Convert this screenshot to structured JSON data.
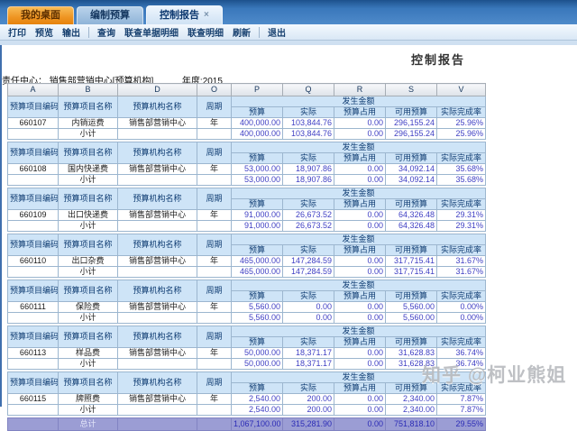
{
  "tabs": [
    {
      "label": "我的桌面"
    },
    {
      "label": "编制预算"
    },
    {
      "label": "控制报告"
    }
  ],
  "icons": {
    "close": "×"
  },
  "toolbar": {
    "groups": [
      [
        "打印",
        "预览",
        "输出"
      ],
      [
        "查询",
        "联查单据明细",
        "联查明细",
        "刷新"
      ],
      [
        "退出"
      ]
    ]
  },
  "report": {
    "title": "控制报告",
    "rc_label": "责任中心：",
    "rc_value": "销售部营销中心[预算机构]",
    "year_label": "年度:",
    "year": "2015"
  },
  "table": {
    "column_letters": [
      "A",
      "B",
      "D",
      "O",
      "P",
      "Q",
      "R",
      "S",
      "V"
    ],
    "block_header": {
      "code": "预算项目编码",
      "name": "预算项目名称",
      "org": "预算机构名称",
      "period": "周期",
      "amount_group": "发生金额",
      "sub": [
        "预算",
        "实际",
        "预算占用",
        "可用预算",
        "实际完成率"
      ]
    },
    "subtotal_label": "小计",
    "total_label": "总计",
    "blocks": [
      {
        "code": "660107",
        "name": "内销运费",
        "org": "销售部营销中心",
        "period": "年",
        "values": [
          "400,000.00",
          "103,844.76",
          "0.00",
          "296,155.24",
          "25.96%"
        ]
      },
      {
        "code": "660108",
        "name": "国内快递费",
        "org": "销售部营销中心",
        "period": "年",
        "values": [
          "53,000.00",
          "18,907.86",
          "0.00",
          "34,092.14",
          "35.68%"
        ]
      },
      {
        "code": "660109",
        "name": "出口快递费",
        "org": "销售部营销中心",
        "period": "年",
        "values": [
          "91,000.00",
          "26,673.52",
          "0.00",
          "64,326.48",
          "29.31%"
        ]
      },
      {
        "code": "660110",
        "name": "出口杂费",
        "org": "销售部营销中心",
        "period": "年",
        "values": [
          "465,000.00",
          "147,284.59",
          "0.00",
          "317,715.41",
          "31.67%"
        ]
      },
      {
        "code": "660111",
        "name": "保险费",
        "org": "销售部营销中心",
        "period": "年",
        "values": [
          "5,560.00",
          "0.00",
          "0.00",
          "5,560.00",
          "0.00%"
        ]
      },
      {
        "code": "660113",
        "name": "样品费",
        "org": "销售部营销中心",
        "period": "年",
        "values": [
          "50,000.00",
          "18,371.17",
          "0.00",
          "31,628.83",
          "36.74%"
        ]
      },
      {
        "code": "660115",
        "name": "牌照费",
        "org": "销售部营销中心",
        "period": "年",
        "values": [
          "2,540.00",
          "200.00",
          "0.00",
          "2,340.00",
          "7.87%"
        ]
      }
    ],
    "total_values": [
      "1,067,100.00",
      "315,281.90",
      "0.00",
      "751,818.10",
      "29.55%"
    ]
  },
  "watermark": "知乎 @柯业熊姐"
}
